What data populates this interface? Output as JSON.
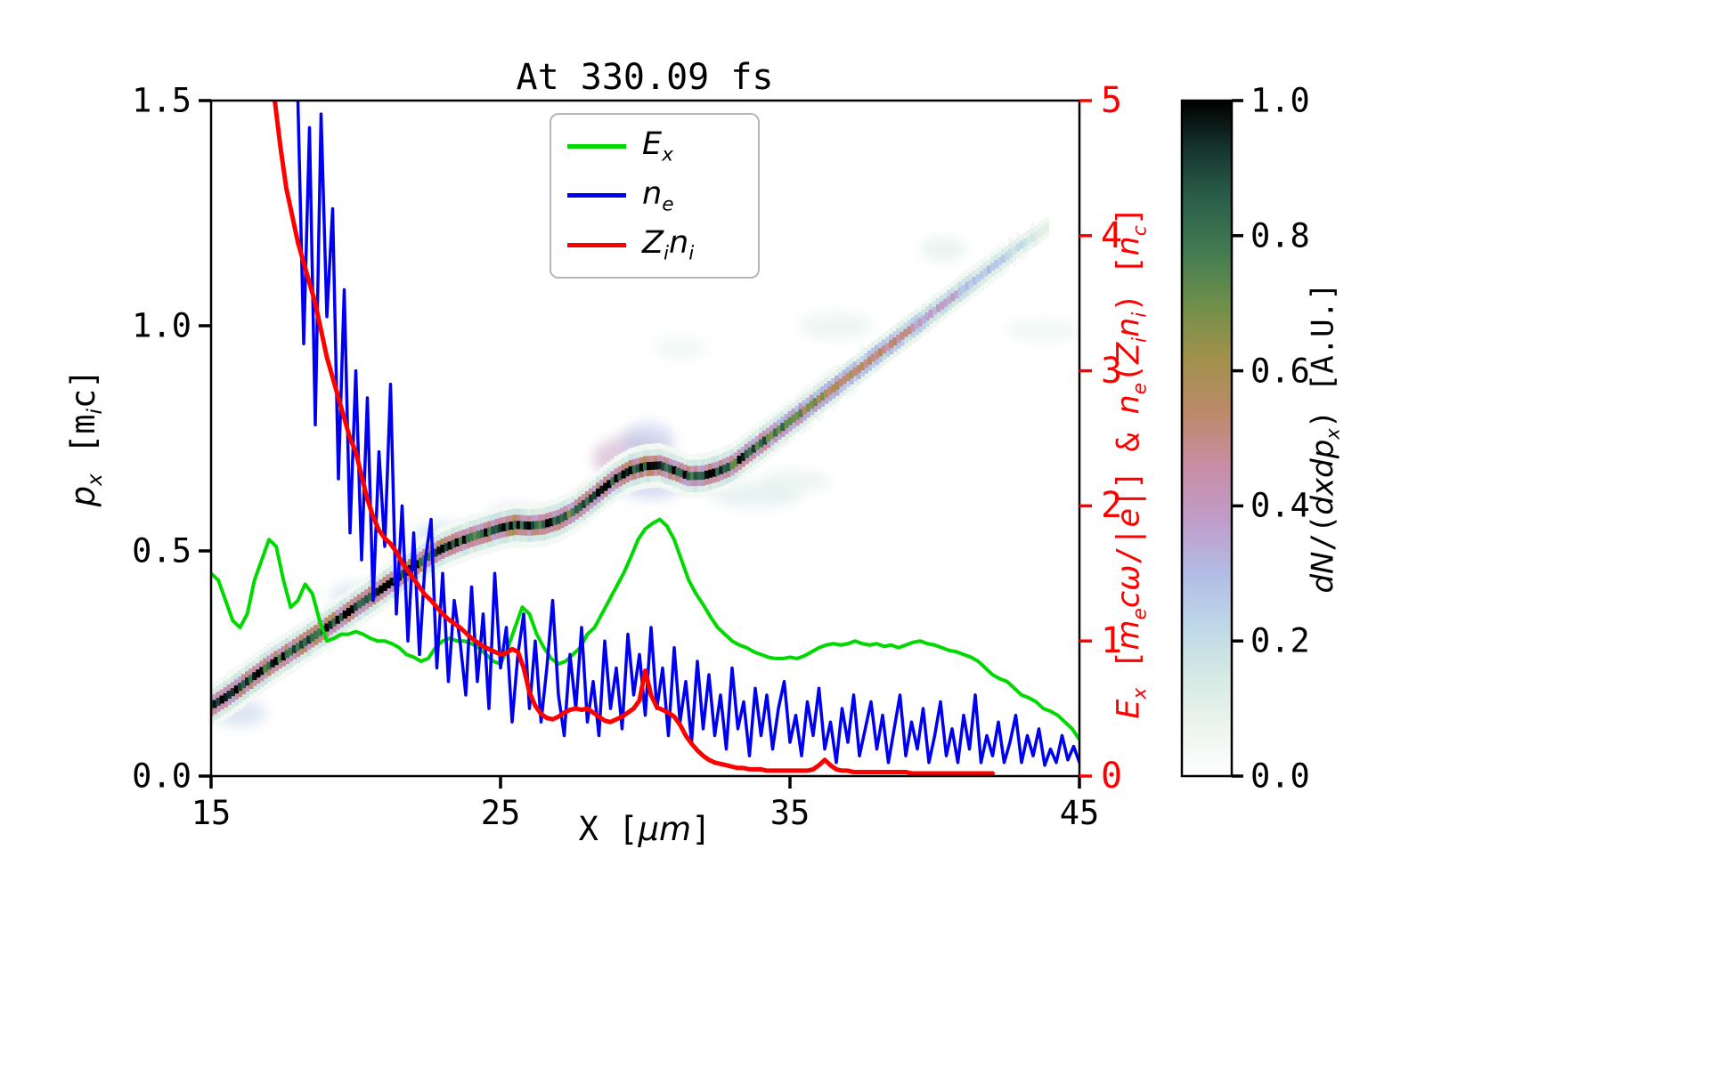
{
  "chart_data": {
    "type": "heatmap+lines",
    "title": "At 330.09 fs",
    "x_label": "X [μm]",
    "y_left_label": "p_x [m_i c]",
    "y_right_label": "E_x [m_e cω/|e|] & n_e(Z_i n_i) [n_c]",
    "colorbar_label": "dN/(dxdp_x) [A.U.]",
    "x_range": [
      15,
      45
    ],
    "y_left_range": [
      0,
      1.5
    ],
    "y_right_range": [
      0,
      5
    ],
    "colorbar_range": [
      0,
      1
    ],
    "axis_color_right": "#ff0000",
    "x_ticks": {
      "values": [
        15,
        25,
        35,
        45
      ],
      "labels": [
        "15",
        "25",
        "35",
        "45"
      ]
    },
    "y_left_ticks": {
      "values": [
        0,
        0.5,
        1.0,
        1.5
      ],
      "labels": [
        "0.0",
        "0.5",
        "1.0",
        "1.5"
      ]
    },
    "y_right_ticks": {
      "values": [
        0,
        1,
        2,
        3,
        4,
        5
      ],
      "labels": [
        "0",
        "1",
        "2",
        "3",
        "4",
        "5"
      ]
    },
    "colorbar_ticks": {
      "values": [
        0,
        0.2,
        0.4,
        0.6,
        0.8,
        1.0
      ],
      "labels": [
        "0.0",
        "0.2",
        "0.4",
        "0.6",
        "0.8",
        "1.0"
      ]
    },
    "labels": {
      "x_parts": [
        [
          "m",
          "X ["
        ],
        [
          "i",
          "μm"
        ],
        [
          "m",
          "]"
        ]
      ],
      "y_left_parts": [
        [
          "i",
          "p"
        ],
        [
          "s",
          "x"
        ],
        [
          "m",
          " [m"
        ],
        [
          "s",
          "i"
        ],
        [
          "m",
          "c]"
        ]
      ],
      "y_right_parts": [
        [
          "i",
          "E"
        ],
        [
          "s",
          "x"
        ],
        [
          "m",
          " ["
        ],
        [
          "i",
          "m"
        ],
        [
          "s",
          "e"
        ],
        [
          "i",
          "cω"
        ],
        [
          "m",
          "/|"
        ],
        [
          "i",
          "e"
        ],
        [
          "m",
          "|] & "
        ],
        [
          "i",
          "n"
        ],
        [
          "s",
          "e"
        ],
        [
          "m",
          "("
        ],
        [
          "i",
          "Z"
        ],
        [
          "s",
          "i"
        ],
        [
          "i",
          "n"
        ],
        [
          "s",
          "i"
        ],
        [
          "m",
          ") ["
        ],
        [
          "i",
          "n"
        ],
        [
          "s",
          "c"
        ],
        [
          "m",
          "]"
        ]
      ],
      "colorbar_parts": [
        [
          "i",
          "dN"
        ],
        [
          "m",
          "/("
        ],
        [
          "i",
          "dxdp"
        ],
        [
          "s",
          "x"
        ],
        [
          "m",
          ") [A.U.]"
        ]
      ]
    },
    "colormap_stops": [
      [
        0.0,
        "#ffffff"
      ],
      [
        0.07,
        "#edf5ee"
      ],
      [
        0.15,
        "#d4e9e3"
      ],
      [
        0.22,
        "#bfd8e8"
      ],
      [
        0.3,
        "#b2bce6"
      ],
      [
        0.38,
        "#c09cc8"
      ],
      [
        0.46,
        "#c98da4"
      ],
      [
        0.54,
        "#bb8a68"
      ],
      [
        0.62,
        "#a0914c"
      ],
      [
        0.7,
        "#6e8f4a"
      ],
      [
        0.78,
        "#417a52"
      ],
      [
        0.86,
        "#2a5c49"
      ],
      [
        0.93,
        "#15332e"
      ],
      [
        1.0,
        "#000000"
      ]
    ],
    "series": [
      {
        "name": "E_x",
        "color": "#00d900",
        "width": 4,
        "axis": "right",
        "label_parts": [
          [
            "i",
            "E"
          ],
          [
            "s",
            "x"
          ]
        ],
        "x0": 15.0,
        "dx": 0.25,
        "values": [
          1.5,
          1.45,
          1.3,
          1.15,
          1.1,
          1.2,
          1.45,
          1.6,
          1.75,
          1.7,
          1.45,
          1.25,
          1.3,
          1.42,
          1.35,
          1.15,
          1.0,
          1.02,
          1.05,
          1.05,
          1.07,
          1.05,
          1.02,
          1.0,
          1.0,
          0.98,
          0.95,
          0.9,
          0.88,
          0.85,
          0.87,
          0.95,
          1.0,
          1.02,
          1.0,
          1.0,
          0.98,
          0.95,
          0.9,
          0.85,
          0.83,
          0.95,
          1.1,
          1.25,
          1.2,
          1.05,
          0.95,
          0.87,
          0.83,
          0.85,
          0.9,
          0.95,
          1.05,
          1.1,
          1.2,
          1.3,
          1.4,
          1.5,
          1.62,
          1.75,
          1.83,
          1.87,
          1.9,
          1.85,
          1.75,
          1.6,
          1.45,
          1.35,
          1.27,
          1.18,
          1.1,
          1.05,
          1.0,
          0.97,
          0.95,
          0.92,
          0.9,
          0.88,
          0.87,
          0.87,
          0.88,
          0.87,
          0.89,
          0.92,
          0.95,
          0.97,
          0.98,
          0.97,
          0.98,
          1.0,
          0.98,
          0.97,
          0.98,
          0.96,
          0.97,
          0.95,
          0.97,
          0.99,
          1.0,
          0.98,
          0.97,
          0.95,
          0.93,
          0.92,
          0.9,
          0.88,
          0.85,
          0.8,
          0.75,
          0.72,
          0.7,
          0.65,
          0.6,
          0.58,
          0.55,
          0.5,
          0.48,
          0.45,
          0.4,
          0.35,
          0.27
        ]
      },
      {
        "name": "n_e",
        "color": "#0000f0",
        "width": 3.5,
        "axis": "right",
        "label_parts": [
          [
            "i",
            "n"
          ],
          [
            "s",
            "e"
          ]
        ],
        "x0": 17.8,
        "dx": 0.2,
        "values": [
          6.0,
          5.0,
          3.2,
          4.8,
          2.6,
          4.9,
          3.4,
          4.2,
          2.2,
          3.6,
          1.8,
          3.0,
          1.6,
          2.8,
          1.3,
          2.4,
          1.7,
          2.9,
          1.2,
          2.0,
          1.0,
          1.8,
          0.9,
          1.6,
          1.9,
          0.8,
          1.5,
          0.7,
          1.3,
          1.0,
          0.6,
          1.4,
          0.7,
          1.2,
          0.5,
          1.5,
          0.8,
          1.1,
          0.4,
          0.9,
          1.2,
          0.5,
          1.0,
          0.4,
          0.8,
          1.3,
          0.6,
          0.3,
          0.9,
          0.5,
          1.1,
          0.4,
          0.7,
          0.3,
          1.0,
          0.5,
          0.8,
          0.35,
          1.05,
          0.6,
          0.9,
          0.45,
          1.1,
          0.5,
          0.8,
          0.3,
          0.95,
          0.4,
          0.7,
          0.25,
          0.85,
          0.35,
          0.75,
          0.3,
          0.6,
          0.2,
          0.8,
          0.35,
          0.55,
          0.15,
          0.65,
          0.3,
          0.6,
          0.2,
          0.5,
          0.7,
          0.25,
          0.45,
          0.15,
          0.55,
          0.3,
          0.65,
          0.2,
          0.4,
          0.1,
          0.5,
          0.25,
          0.6,
          0.15,
          0.35,
          0.55,
          0.2,
          0.45,
          0.1,
          0.35,
          0.6,
          0.15,
          0.4,
          0.2,
          0.5,
          0.1,
          0.3,
          0.55,
          0.15,
          0.35,
          0.1,
          0.45,
          0.2,
          0.6,
          0.1,
          0.3,
          0.15,
          0.4,
          0.1,
          0.25,
          0.45,
          0.1,
          0.3,
          0.15,
          0.35,
          0.08,
          0.2,
          0.1,
          0.3,
          0.12,
          0.22,
          0.1
        ]
      },
      {
        "name": "Z_i n_i",
        "color": "#ff0000",
        "width": 5,
        "axis": "right",
        "label_parts": [
          [
            "i",
            "Z"
          ],
          [
            "s",
            "i"
          ],
          [
            "i",
            "n"
          ],
          [
            "s",
            "i"
          ]
        ],
        "x0": 17.0,
        "dx": 0.2,
        "values": [
          5.6,
          5.0,
          4.65,
          4.35,
          4.15,
          3.95,
          3.8,
          3.65,
          3.5,
          3.3,
          3.1,
          2.95,
          2.8,
          2.65,
          2.5,
          2.4,
          2.22,
          2.05,
          1.92,
          1.82,
          1.76,
          1.72,
          1.66,
          1.58,
          1.52,
          1.46,
          1.4,
          1.34,
          1.3,
          1.25,
          1.2,
          1.16,
          1.13,
          1.1,
          1.06,
          1.02,
          0.99,
          0.96,
          0.94,
          0.92,
          0.9,
          0.91,
          0.94,
          0.92,
          0.8,
          0.62,
          0.52,
          0.46,
          0.43,
          0.42,
          0.44,
          0.47,
          0.49,
          0.5,
          0.49,
          0.5,
          0.47,
          0.44,
          0.41,
          0.4,
          0.42,
          0.44,
          0.47,
          0.5,
          0.56,
          0.78,
          0.6,
          0.51,
          0.49,
          0.47,
          0.44,
          0.38,
          0.3,
          0.24,
          0.19,
          0.15,
          0.12,
          0.1,
          0.09,
          0.08,
          0.07,
          0.06,
          0.06,
          0.05,
          0.05,
          0.05,
          0.04,
          0.04,
          0.04,
          0.04,
          0.04,
          0.04,
          0.04,
          0.04,
          0.05,
          0.08,
          0.12,
          0.08,
          0.05,
          0.04,
          0.04,
          0.03,
          0.03,
          0.03,
          0.03,
          0.03,
          0.03,
          0.03,
          0.03,
          0.03,
          0.03,
          0.02,
          0.02,
          0.02,
          0.02,
          0.02,
          0.02,
          0.02,
          0.02,
          0.02,
          0.02,
          0.02,
          0.02,
          0.02,
          0.02,
          0.02
        ]
      }
    ],
    "band": [
      [
        15.0,
        0.155,
        0.85
      ],
      [
        15.5,
        0.175,
        0.9
      ],
      [
        16.0,
        0.198,
        0.88
      ],
      [
        16.5,
        0.222,
        0.92
      ],
      [
        17.0,
        0.245,
        0.95
      ],
      [
        17.5,
        0.266,
        0.9
      ],
      [
        18.0,
        0.287,
        0.92
      ],
      [
        18.5,
        0.308,
        0.95
      ],
      [
        19.0,
        0.33,
        0.9
      ],
      [
        19.5,
        0.353,
        0.93
      ],
      [
        20.0,
        0.376,
        0.95
      ],
      [
        20.5,
        0.398,
        0.9
      ],
      [
        21.0,
        0.42,
        0.93
      ],
      [
        21.5,
        0.443,
        0.95
      ],
      [
        22.0,
        0.465,
        0.92
      ],
      [
        22.5,
        0.487,
        0.9
      ],
      [
        23.0,
        0.505,
        0.93
      ],
      [
        23.5,
        0.519,
        0.9
      ],
      [
        24.0,
        0.531,
        0.88
      ],
      [
        24.5,
        0.541,
        0.9
      ],
      [
        25.0,
        0.551,
        0.95
      ],
      [
        25.5,
        0.558,
        1.0
      ],
      [
        26.0,
        0.556,
        0.92
      ],
      [
        26.5,
        0.559,
        0.88
      ],
      [
        27.0,
        0.569,
        0.85
      ],
      [
        27.5,
        0.586,
        0.82
      ],
      [
        28.0,
        0.61,
        0.85
      ],
      [
        28.5,
        0.636,
        0.9
      ],
      [
        29.0,
        0.661,
        0.95
      ],
      [
        29.5,
        0.679,
        1.0
      ],
      [
        30.0,
        0.688,
        0.98
      ],
      [
        30.5,
        0.69,
        0.95
      ],
      [
        31.0,
        0.679,
        0.9
      ],
      [
        31.5,
        0.666,
        0.88
      ],
      [
        32.0,
        0.667,
        0.9
      ],
      [
        32.5,
        0.676,
        0.93
      ],
      [
        33.0,
        0.69,
        0.88
      ],
      [
        33.5,
        0.715,
        0.8
      ],
      [
        34.0,
        0.739,
        0.78
      ],
      [
        34.5,
        0.763,
        0.75
      ],
      [
        35.0,
        0.788,
        0.72
      ],
      [
        35.5,
        0.812,
        0.68
      ],
      [
        36.0,
        0.837,
        0.65
      ],
      [
        36.5,
        0.861,
        0.62
      ],
      [
        37.0,
        0.886,
        0.58
      ],
      [
        37.5,
        0.91,
        0.55
      ],
      [
        38.0,
        0.935,
        0.52
      ],
      [
        38.5,
        0.959,
        0.48
      ],
      [
        39.0,
        0.984,
        0.45
      ],
      [
        39.5,
        1.008,
        0.42
      ],
      [
        40.0,
        1.033,
        0.38
      ],
      [
        40.5,
        1.057,
        0.35
      ],
      [
        41.0,
        1.082,
        0.32
      ],
      [
        41.5,
        1.106,
        0.28
      ],
      [
        42.0,
        1.131,
        0.25
      ],
      [
        42.5,
        1.155,
        0.22
      ],
      [
        43.0,
        1.18,
        0.18
      ],
      [
        43.5,
        1.2,
        0.15
      ],
      [
        44.0,
        1.225,
        0.1
      ]
    ],
    "halos": [
      [
        16.0,
        0.14,
        0.9,
        0.03,
        0.25
      ],
      [
        20.0,
        0.4,
        0.9,
        0.03,
        0.22
      ],
      [
        23.0,
        0.535,
        1.0,
        0.03,
        0.22
      ],
      [
        25.6,
        0.565,
        1.1,
        0.035,
        0.3
      ],
      [
        29.6,
        0.705,
        1.4,
        0.05,
        0.4
      ],
      [
        30.1,
        0.75,
        0.9,
        0.035,
        0.28
      ],
      [
        30.2,
        0.655,
        1.2,
        0.04,
        0.3
      ],
      [
        33.8,
        0.625,
        1.6,
        0.028,
        0.16
      ],
      [
        35.2,
        0.655,
        1.2,
        0.025,
        0.13
      ],
      [
        31.2,
        0.95,
        0.9,
        0.025,
        0.1
      ],
      [
        36.6,
        1.0,
        1.3,
        0.03,
        0.12
      ],
      [
        40.3,
        1.17,
        0.8,
        0.027,
        0.15
      ],
      [
        43.8,
        0.99,
        1.4,
        0.025,
        0.1
      ]
    ],
    "legend_position": "upper center"
  }
}
